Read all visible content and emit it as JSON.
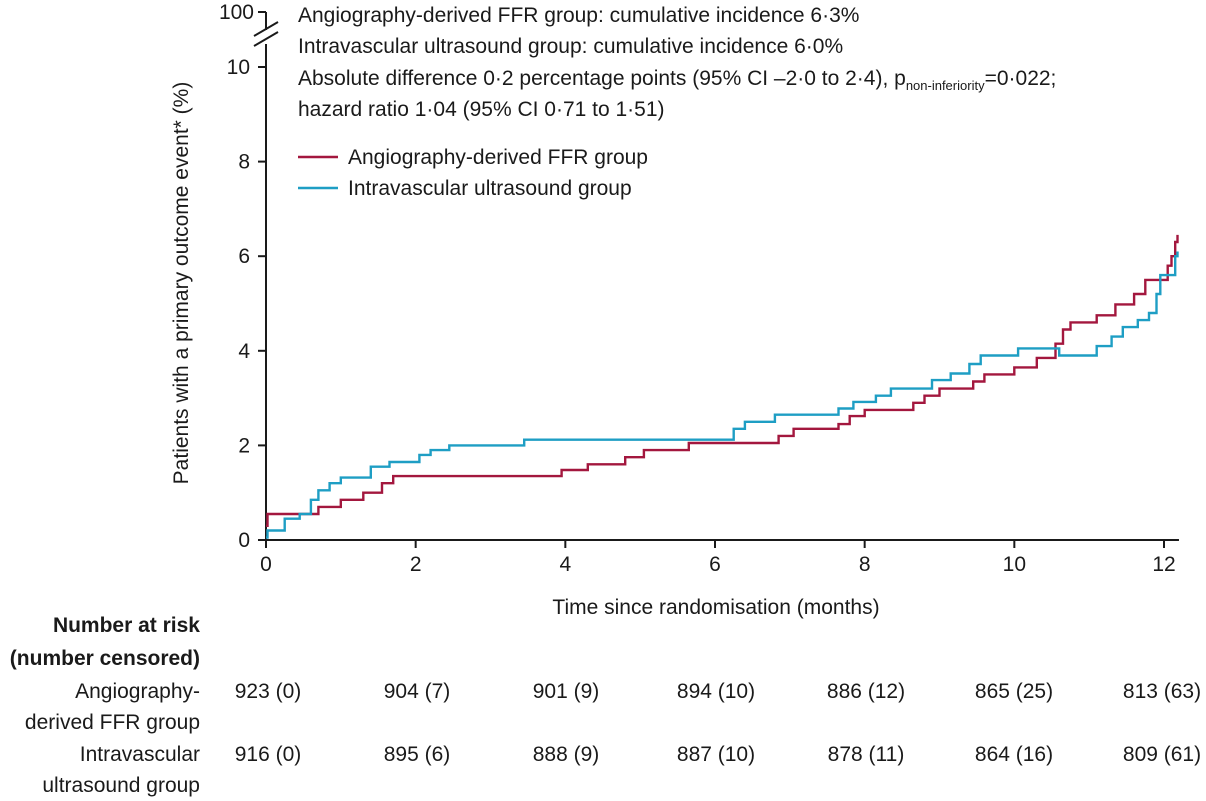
{
  "chart_data": {
    "type": "line",
    "step": true,
    "xlabel": "Time since randomisation (months)",
    "ylabel": "Patients with a primary outcome event* (%)",
    "xlim": [
      0,
      12.2
    ],
    "ylim": [
      0,
      10
    ],
    "x_ticks": [
      "0",
      "2",
      "4",
      "6",
      "8",
      "10",
      "12"
    ],
    "y_ticks": [
      "0",
      "2",
      "4",
      "6",
      "8",
      "10"
    ],
    "y_break_label": "100",
    "annotations": {
      "line1": "Angiography-derived FFR group: cumulative incidence 6·3%",
      "line2": "Intravascular ultrasound group: cumulative incidence 6·0%",
      "line3_pre": "Absolute difference 0·2 percentage points (95% CI –2·0 to 2·4), p",
      "line3_sub": "non-inferiority",
      "line3_post": "=0·022;",
      "line4": "hazard ratio 1·04 (95% CI 0·71 to 1·51)"
    },
    "legend": [
      {
        "name": "Angiography-derived FFR group",
        "color": "#a3173e"
      },
      {
        "name": "Intravascular ultrasound group",
        "color": "#1e9ec4"
      }
    ],
    "series": [
      {
        "name": "Angiography-derived FFR group",
        "color": "#a3173e",
        "points": [
          [
            0,
            0.3
          ],
          [
            0.02,
            0.55
          ],
          [
            0.55,
            0.55
          ],
          [
            0.7,
            0.7
          ],
          [
            0.95,
            0.7
          ],
          [
            1.0,
            0.85
          ],
          [
            1.25,
            0.85
          ],
          [
            1.3,
            1.0
          ],
          [
            1.5,
            1.0
          ],
          [
            1.55,
            1.2
          ],
          [
            1.65,
            1.2
          ],
          [
            1.7,
            1.35
          ],
          [
            3.9,
            1.35
          ],
          [
            3.95,
            1.48
          ],
          [
            4.25,
            1.48
          ],
          [
            4.3,
            1.6
          ],
          [
            4.75,
            1.6
          ],
          [
            4.8,
            1.75
          ],
          [
            5.0,
            1.75
          ],
          [
            5.05,
            1.9
          ],
          [
            5.6,
            1.9
          ],
          [
            5.65,
            2.05
          ],
          [
            6.8,
            2.05
          ],
          [
            6.85,
            2.2
          ],
          [
            7.0,
            2.2
          ],
          [
            7.05,
            2.35
          ],
          [
            7.6,
            2.35
          ],
          [
            7.65,
            2.45
          ],
          [
            7.75,
            2.45
          ],
          [
            7.8,
            2.62
          ],
          [
            7.95,
            2.62
          ],
          [
            8.0,
            2.75
          ],
          [
            8.6,
            2.75
          ],
          [
            8.65,
            2.9
          ],
          [
            8.75,
            2.9
          ],
          [
            8.8,
            3.05
          ],
          [
            8.95,
            3.05
          ],
          [
            9.0,
            3.2
          ],
          [
            9.4,
            3.2
          ],
          [
            9.45,
            3.35
          ],
          [
            9.55,
            3.35
          ],
          [
            9.6,
            3.5
          ],
          [
            9.95,
            3.5
          ],
          [
            10.0,
            3.65
          ],
          [
            10.25,
            3.65
          ],
          [
            10.3,
            3.85
          ],
          [
            10.5,
            3.85
          ],
          [
            10.55,
            4.15
          ],
          [
            10.6,
            4.15
          ],
          [
            10.65,
            4.45
          ],
          [
            10.7,
            4.45
          ],
          [
            10.75,
            4.6
          ],
          [
            11.05,
            4.6
          ],
          [
            11.1,
            4.75
          ],
          [
            11.3,
            4.75
          ],
          [
            11.35,
            4.98
          ],
          [
            11.55,
            4.98
          ],
          [
            11.6,
            5.2
          ],
          [
            11.7,
            5.2
          ],
          [
            11.75,
            5.5
          ],
          [
            12.0,
            5.5
          ],
          [
            12.05,
            5.8
          ],
          [
            12.1,
            6.0
          ],
          [
            12.15,
            6.3
          ],
          [
            12.18,
            6.45
          ]
        ]
      },
      {
        "name": "Intravascular ultrasound group",
        "color": "#1e9ec4",
        "points": [
          [
            0,
            0.05
          ],
          [
            0.02,
            0.2
          ],
          [
            0.2,
            0.2
          ],
          [
            0.25,
            0.45
          ],
          [
            0.4,
            0.45
          ],
          [
            0.45,
            0.55
          ],
          [
            0.55,
            0.55
          ],
          [
            0.6,
            0.85
          ],
          [
            0.65,
            0.85
          ],
          [
            0.7,
            1.05
          ],
          [
            0.8,
            1.05
          ],
          [
            0.85,
            1.2
          ],
          [
            0.95,
            1.2
          ],
          [
            1.0,
            1.32
          ],
          [
            1.35,
            1.32
          ],
          [
            1.4,
            1.55
          ],
          [
            1.6,
            1.55
          ],
          [
            1.65,
            1.65
          ],
          [
            2.0,
            1.65
          ],
          [
            2.05,
            1.8
          ],
          [
            2.15,
            1.8
          ],
          [
            2.2,
            1.9
          ],
          [
            2.4,
            1.9
          ],
          [
            2.45,
            2.0
          ],
          [
            3.4,
            2.0
          ],
          [
            3.45,
            2.12
          ],
          [
            6.2,
            2.12
          ],
          [
            6.25,
            2.35
          ],
          [
            6.35,
            2.35
          ],
          [
            6.4,
            2.5
          ],
          [
            6.75,
            2.5
          ],
          [
            6.8,
            2.65
          ],
          [
            7.6,
            2.65
          ],
          [
            7.65,
            2.78
          ],
          [
            7.8,
            2.78
          ],
          [
            7.85,
            2.92
          ],
          [
            8.1,
            2.92
          ],
          [
            8.15,
            3.05
          ],
          [
            8.3,
            3.05
          ],
          [
            8.35,
            3.2
          ],
          [
            8.85,
            3.2
          ],
          [
            8.9,
            3.38
          ],
          [
            9.1,
            3.38
          ],
          [
            9.15,
            3.52
          ],
          [
            9.35,
            3.52
          ],
          [
            9.4,
            3.72
          ],
          [
            9.5,
            3.72
          ],
          [
            9.55,
            3.9
          ],
          [
            10.0,
            3.9
          ],
          [
            10.05,
            4.05
          ],
          [
            10.55,
            4.05
          ],
          [
            10.6,
            3.9
          ],
          [
            11.05,
            3.9
          ],
          [
            11.1,
            4.1
          ],
          [
            11.25,
            4.1
          ],
          [
            11.3,
            4.3
          ],
          [
            11.4,
            4.3
          ],
          [
            11.45,
            4.5
          ],
          [
            11.6,
            4.5
          ],
          [
            11.65,
            4.65
          ],
          [
            11.75,
            4.65
          ],
          [
            11.8,
            4.8
          ],
          [
            11.85,
            4.8
          ],
          [
            11.9,
            5.2
          ],
          [
            11.95,
            5.6
          ],
          [
            12.1,
            5.6
          ],
          [
            12.15,
            6.0
          ],
          [
            12.18,
            6.1
          ]
        ]
      }
    ],
    "number_at_risk": {
      "header_line1": "Number at risk",
      "header_line2": "(number censored)",
      "groups": [
        {
          "label_line1": "Angiography-",
          "label_line2": "derived FFR group",
          "values": [
            "923 (0)",
            "904 (7)",
            "901 (9)",
            "894 (10)",
            "886 (12)",
            "865 (25)",
            "813 (63)"
          ]
        },
        {
          "label_line1": "Intravascular",
          "label_line2": "ultrasound group",
          "values": [
            "916 (0)",
            "895 (6)",
            "888 (9)",
            "887 (10)",
            "878 (11)",
            "864 (16)",
            "809 (61)"
          ]
        }
      ]
    }
  }
}
